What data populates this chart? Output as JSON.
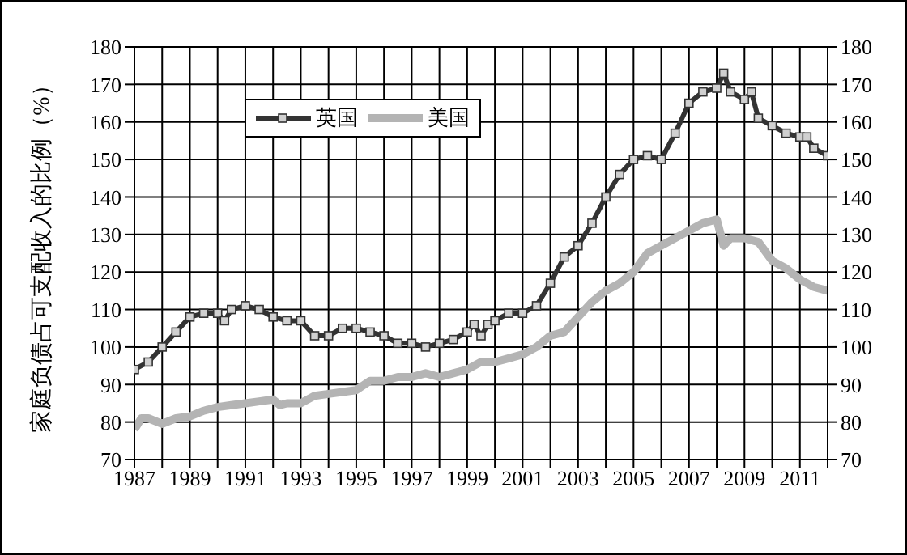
{
  "chart_data": {
    "type": "line",
    "ylabel": "家庭负债占可支配收入的比例（%）",
    "xlim": [
      1987,
      2012
    ],
    "xticks": [
      1987,
      {
        "value": 1988,
        "label": null
      },
      1989,
      {
        "value": 1990,
        "label": null
      },
      1991,
      {
        "value": 1992,
        "label": null
      },
      1993,
      {
        "value": 1994,
        "label": null
      },
      1995,
      {
        "value": 1996,
        "label": null
      },
      1997,
      {
        "value": 1998,
        "label": null
      },
      1999,
      {
        "value": 2000,
        "label": null
      },
      2001,
      {
        "value": 2002,
        "label": null
      },
      2003,
      {
        "value": 2004,
        "label": null
      },
      2005,
      {
        "value": 2006,
        "label": null
      },
      2007,
      {
        "value": 2008,
        "label": null
      },
      2009,
      {
        "value": 2010,
        "label": null
      },
      2011,
      {
        "value": 2012,
        "label": null
      }
    ],
    "ylim": [
      70,
      180
    ],
    "yticks": [
      70,
      80,
      90,
      100,
      110,
      120,
      130,
      140,
      150,
      160,
      170,
      180
    ],
    "y2lim": [
      70,
      180
    ],
    "y2ticks": [
      70,
      80,
      90,
      100,
      110,
      120,
      130,
      140,
      150,
      160,
      170,
      180
    ],
    "grid": true,
    "legend": "top left",
    "series": [
      {
        "name": "英国",
        "color": "#333333",
        "marker": "square",
        "x": [
          1987,
          1987.5,
          1988,
          1988.5,
          1989,
          1989.5,
          1990,
          1990.25,
          1990.5,
          1991,
          1991.5,
          1992,
          1992.5,
          1993,
          1993.5,
          1994,
          1994.5,
          1995,
          1995.5,
          1996,
          1996.5,
          1997,
          1997.5,
          1998,
          1998.5,
          1999,
          1999.25,
          1999.5,
          1999.75,
          2000,
          2000.5,
          2001,
          2001.5,
          2002,
          2002.5,
          2003,
          2003.5,
          2004,
          2004.5,
          2005,
          2005.5,
          2006,
          2006.5,
          2007,
          2007.5,
          2008,
          2008.25,
          2008.5,
          2009,
          2009.25,
          2009.5,
          2010,
          2010.5,
          2011,
          2011.25,
          2011.5,
          2012
        ],
        "values": [
          94,
          96,
          100,
          104,
          108,
          109,
          109,
          107,
          110,
          111,
          110,
          108,
          107,
          107,
          103,
          103,
          105,
          105,
          104,
          103,
          101,
          101,
          100,
          101,
          102,
          104,
          106,
          103,
          106,
          107,
          109,
          109,
          111,
          117,
          124,
          127,
          133,
          140,
          146,
          150,
          151,
          150,
          157,
          165,
          168,
          169,
          173,
          168,
          166,
          168,
          161,
          159,
          157,
          156,
          156,
          153,
          151
        ]
      },
      {
        "name": "美国",
        "color": "#b4b4b4",
        "marker": "none",
        "x": [
          1987,
          1987.25,
          1987.5,
          1988,
          1988.5,
          1989,
          1989.5,
          1990,
          1990.5,
          1991,
          1991.5,
          1992,
          1992.25,
          1992.5,
          1993,
          1993.5,
          1994,
          1994.5,
          1995,
          1995.5,
          1996,
          1996.5,
          1997,
          1997.5,
          1998,
          1998.5,
          1999,
          1999.5,
          2000,
          2000.5,
          2001,
          2001.5,
          2002,
          2002.5,
          2003,
          2003.5,
          2004,
          2004.5,
          2005,
          2005.5,
          2006,
          2006.5,
          2007,
          2007.5,
          2008,
          2008.25,
          2008.5,
          2009,
          2009.5,
          2010,
          2010.5,
          2011,
          2011.5,
          2012
        ],
        "values": [
          78,
          81,
          81,
          79.5,
          81,
          81.5,
          83,
          84,
          84.5,
          85,
          85.5,
          86,
          84.5,
          85,
          85,
          87,
          87.5,
          88,
          88.5,
          91,
          91,
          92,
          92,
          93,
          92,
          93,
          94,
          96,
          96,
          97,
          98,
          100,
          103,
          104,
          108,
          112,
          115,
          117,
          120,
          125,
          127,
          129,
          131,
          133,
          134,
          127,
          129,
          129,
          128,
          123,
          121,
          118,
          116,
          115
        ]
      }
    ]
  }
}
